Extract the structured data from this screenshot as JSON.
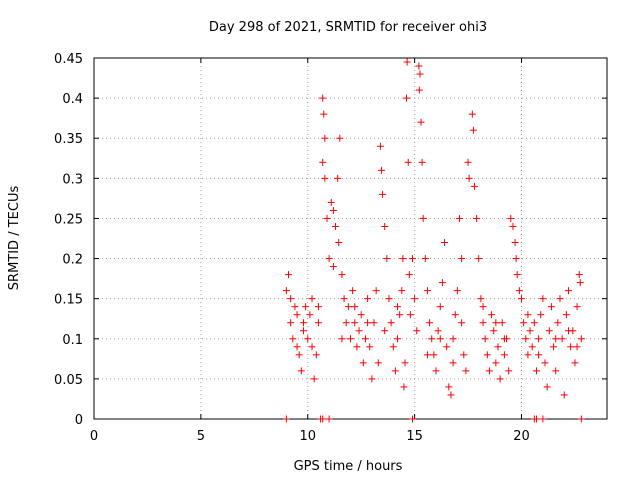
{
  "chart_data": {
    "type": "scatter",
    "title": "Day 298 of 2021, SRMTID for receiver ohi3",
    "xlabel": "GPS time / hours",
    "ylabel": "SRMTID / TECUs",
    "xlim": [
      0,
      24
    ],
    "ylim": [
      0,
      0.45
    ],
    "grid": true,
    "marker": "+",
    "color": "#ff0000",
    "x_ticks": [
      0,
      5,
      10,
      15,
      20
    ],
    "x_tick_labels": [
      "0",
      "5",
      "10",
      "15",
      "20"
    ],
    "y_ticks": [
      0,
      0.05,
      0.1,
      0.15,
      0.2,
      0.25,
      0.3,
      0.35,
      0.4,
      0.45
    ],
    "y_tick_labels": [
      "0",
      "0.05",
      "0.1",
      "0.15",
      "0.2",
      "0.25",
      "0.3",
      "0.35",
      "0.4",
      "0.45"
    ],
    "series": [
      {
        "name": "SRMTID",
        "points": [
          [
            9.0,
            0.0
          ],
          [
            10.6,
            0.0
          ],
          [
            10.7,
            0.0
          ],
          [
            11.0,
            0.0
          ],
          [
            14.9,
            0.0
          ],
          [
            20.6,
            0.0
          ],
          [
            20.7,
            0.0
          ],
          [
            21.0,
            0.0
          ],
          [
            22.8,
            0.0
          ],
          [
            9.0,
            0.16
          ],
          [
            9.1,
            0.18
          ],
          [
            9.2,
            0.12
          ],
          [
            9.3,
            0.1
          ],
          [
            9.4,
            0.14
          ],
          [
            9.5,
            0.09
          ],
          [
            9.6,
            0.08
          ],
          [
            9.7,
            0.06
          ],
          [
            9.8,
            0.12
          ],
          [
            9.9,
            0.14
          ],
          [
            10.0,
            0.1
          ],
          [
            10.1,
            0.13
          ],
          [
            10.2,
            0.15
          ],
          [
            10.3,
            0.05
          ],
          [
            10.4,
            0.08
          ],
          [
            10.5,
            0.12
          ],
          [
            10.7,
            0.4
          ],
          [
            10.75,
            0.38
          ],
          [
            10.8,
            0.35
          ],
          [
            10.7,
            0.32
          ],
          [
            10.8,
            0.3
          ],
          [
            10.9,
            0.25
          ],
          [
            11.0,
            0.2
          ],
          [
            11.1,
            0.27
          ],
          [
            11.2,
            0.26
          ],
          [
            11.3,
            0.24
          ],
          [
            11.4,
            0.3
          ],
          [
            11.5,
            0.35
          ],
          [
            11.45,
            0.22
          ],
          [
            11.6,
            0.18
          ],
          [
            11.7,
            0.15
          ],
          [
            11.8,
            0.12
          ],
          [
            11.9,
            0.14
          ],
          [
            12.0,
            0.1
          ],
          [
            12.1,
            0.16
          ],
          [
            12.2,
            0.12
          ],
          [
            12.3,
            0.09
          ],
          [
            12.4,
            0.11
          ],
          [
            12.5,
            0.13
          ],
          [
            12.6,
            0.07
          ],
          [
            12.7,
            0.1
          ],
          [
            12.8,
            0.15
          ],
          [
            12.9,
            0.09
          ],
          [
            13.0,
            0.05
          ],
          [
            13.1,
            0.12
          ],
          [
            13.2,
            0.16
          ],
          [
            13.4,
            0.34
          ],
          [
            13.45,
            0.31
          ],
          [
            13.5,
            0.28
          ],
          [
            13.6,
            0.24
          ],
          [
            13.7,
            0.2
          ],
          [
            13.8,
            0.15
          ],
          [
            13.9,
            0.12
          ],
          [
            14.0,
            0.09
          ],
          [
            14.1,
            0.06
          ],
          [
            14.2,
            0.1
          ],
          [
            14.3,
            0.13
          ],
          [
            14.4,
            0.16
          ],
          [
            14.45,
            0.2
          ],
          [
            14.5,
            0.04
          ],
          [
            14.55,
            0.07
          ],
          [
            14.65,
            0.445
          ],
          [
            14.62,
            0.4
          ],
          [
            14.7,
            0.32
          ],
          [
            14.75,
            0.18
          ],
          [
            14.8,
            0.13
          ],
          [
            14.9,
            0.2
          ],
          [
            15.0,
            0.15
          ],
          [
            15.1,
            0.11
          ],
          [
            15.2,
            0.44
          ],
          [
            15.25,
            0.43
          ],
          [
            15.22,
            0.41
          ],
          [
            15.3,
            0.37
          ],
          [
            15.35,
            0.32
          ],
          [
            15.4,
            0.25
          ],
          [
            15.5,
            0.2
          ],
          [
            15.6,
            0.16
          ],
          [
            15.7,
            0.12
          ],
          [
            15.8,
            0.1
          ],
          [
            15.9,
            0.08
          ],
          [
            16.0,
            0.06
          ],
          [
            16.1,
            0.11
          ],
          [
            16.2,
            0.14
          ],
          [
            16.3,
            0.17
          ],
          [
            16.4,
            0.22
          ],
          [
            16.5,
            0.09
          ],
          [
            16.6,
            0.04
          ],
          [
            16.7,
            0.03
          ],
          [
            16.8,
            0.1
          ],
          [
            16.9,
            0.13
          ],
          [
            17.0,
            0.16
          ],
          [
            17.1,
            0.25
          ],
          [
            17.2,
            0.2
          ],
          [
            17.3,
            0.08
          ],
          [
            17.4,
            0.06
          ],
          [
            17.5,
            0.32
          ],
          [
            17.55,
            0.3
          ],
          [
            17.7,
            0.38
          ],
          [
            17.75,
            0.36
          ],
          [
            17.8,
            0.29
          ],
          [
            17.9,
            0.25
          ],
          [
            18.0,
            0.2
          ],
          [
            18.1,
            0.15
          ],
          [
            18.2,
            0.12
          ],
          [
            18.3,
            0.1
          ],
          [
            18.4,
            0.08
          ],
          [
            18.5,
            0.06
          ],
          [
            18.6,
            0.13
          ],
          [
            18.7,
            0.11
          ],
          [
            18.8,
            0.07
          ],
          [
            18.9,
            0.09
          ],
          [
            19.0,
            0.05
          ],
          [
            19.1,
            0.12
          ],
          [
            19.2,
            0.08
          ],
          [
            19.3,
            0.1
          ],
          [
            19.4,
            0.06
          ],
          [
            19.5,
            0.25
          ],
          [
            19.6,
            0.24
          ],
          [
            19.7,
            0.22
          ],
          [
            19.75,
            0.2
          ],
          [
            19.8,
            0.18
          ],
          [
            19.9,
            0.16
          ],
          [
            20.0,
            0.15
          ],
          [
            20.1,
            0.12
          ],
          [
            20.2,
            0.1
          ],
          [
            20.3,
            0.08
          ],
          [
            20.4,
            0.11
          ],
          [
            20.5,
            0.09
          ],
          [
            20.6,
            0.12
          ],
          [
            20.7,
            0.06
          ],
          [
            20.8,
            0.1
          ],
          [
            20.9,
            0.13
          ],
          [
            21.0,
            0.15
          ],
          [
            21.1,
            0.07
          ],
          [
            21.2,
            0.04
          ],
          [
            21.3,
            0.11
          ],
          [
            21.4,
            0.14
          ],
          [
            21.5,
            0.09
          ],
          [
            21.6,
            0.06
          ],
          [
            21.7,
            0.12
          ],
          [
            21.8,
            0.15
          ],
          [
            21.9,
            0.1
          ],
          [
            22.0,
            0.03
          ],
          [
            22.1,
            0.13
          ],
          [
            22.2,
            0.16
          ],
          [
            22.3,
            0.09
          ],
          [
            22.4,
            0.11
          ],
          [
            22.5,
            0.07
          ],
          [
            22.6,
            0.14
          ],
          [
            22.7,
            0.18
          ],
          [
            22.75,
            0.17
          ],
          [
            22.8,
            0.1
          ],
          [
            9.2,
            0.15
          ],
          [
            9.5,
            0.13
          ],
          [
            9.8,
            0.11
          ],
          [
            10.2,
            0.09
          ],
          [
            10.5,
            0.14
          ],
          [
            11.2,
            0.19
          ],
          [
            11.6,
            0.1
          ],
          [
            12.2,
            0.14
          ],
          [
            12.8,
            0.12
          ],
          [
            13.3,
            0.07
          ],
          [
            13.6,
            0.11
          ],
          [
            14.2,
            0.14
          ],
          [
            15.6,
            0.08
          ],
          [
            16.2,
            0.1
          ],
          [
            16.8,
            0.07
          ],
          [
            17.2,
            0.12
          ],
          [
            18.2,
            0.14
          ],
          [
            18.8,
            0.12
          ],
          [
            19.2,
            0.1
          ],
          [
            20.3,
            0.13
          ],
          [
            20.8,
            0.08
          ],
          [
            21.6,
            0.1
          ],
          [
            22.2,
            0.11
          ],
          [
            22.6,
            0.09
          ]
        ]
      }
    ]
  }
}
